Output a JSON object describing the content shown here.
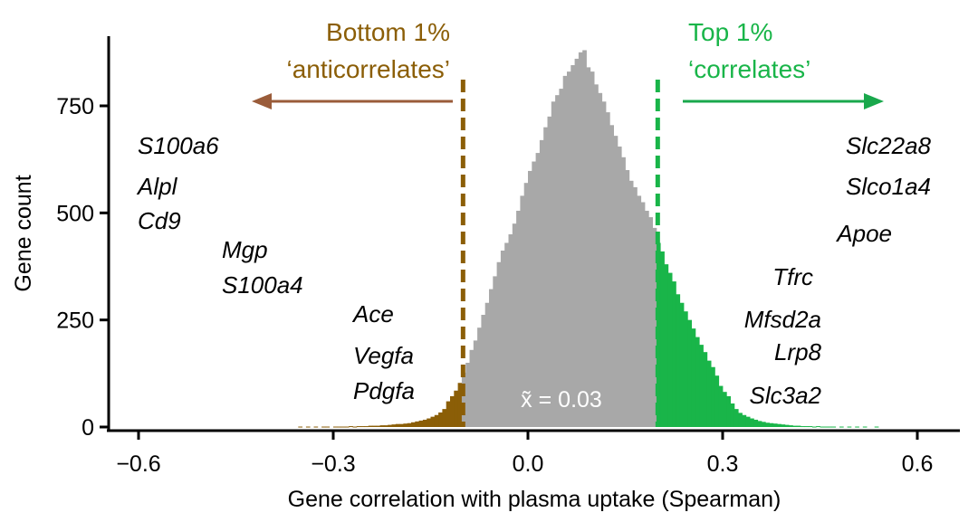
{
  "chart_data": {
    "type": "histogram",
    "xlabel": "Gene correlation with plasma uptake (Spearman)",
    "ylabel": "Gene count",
    "xlim": [
      -0.66,
      0.66
    ],
    "ylim": [
      0,
      920
    ],
    "xticks": [
      -0.6,
      -0.3,
      0.0,
      0.3,
      0.6
    ],
    "xtick_labels": [
      "−0.6",
      "−0.3",
      "0.0",
      "0.3",
      "0.6"
    ],
    "yticks": [
      0,
      250,
      500,
      750
    ],
    "ytick_labels": [
      "0",
      "250",
      "500",
      "750"
    ],
    "bin_width": 0.006,
    "bin_start": -0.354,
    "counts": [
      1,
      0,
      1,
      0,
      1,
      0,
      1,
      1,
      0,
      1,
      1,
      1,
      1,
      2,
      1,
      2,
      2,
      2,
      3,
      3,
      3,
      4,
      4,
      5,
      6,
      7,
      7,
      8,
      9,
      11,
      13,
      15,
      17,
      20,
      24,
      28,
      34,
      42,
      60,
      72,
      85,
      103,
      127,
      150,
      180,
      202,
      232,
      262,
      290,
      322,
      352,
      385,
      412,
      430,
      450,
      475,
      505,
      540,
      570,
      598,
      620,
      640,
      670,
      700,
      725,
      760,
      775,
      790,
      820,
      830,
      845,
      860,
      875,
      880,
      840,
      830,
      800,
      780,
      760,
      735,
      705,
      680,
      655,
      630,
      600,
      575,
      560,
      540,
      525,
      505,
      490,
      465,
      430,
      410,
      380,
      360,
      340,
      310,
      290,
      270,
      250,
      230,
      210,
      192,
      175,
      155,
      140,
      120,
      96,
      82,
      72,
      55,
      42,
      33,
      28,
      24,
      20,
      17,
      14,
      12,
      10,
      9,
      8,
      7,
      6,
      5,
      4,
      3,
      3,
      2,
      2,
      2,
      1,
      2,
      1,
      1,
      1,
      1,
      0,
      1,
      0,
      1,
      0,
      1,
      0,
      1,
      0,
      0,
      1
    ],
    "lower_threshold": -0.1,
    "upper_threshold": 0.2,
    "median": 0.03,
    "colors": {
      "low": "#8b5e07",
      "high": "#19b549",
      "mid": "#a8a8a8",
      "low_arrow": "#9a5c3a",
      "high_arrow": "#19a84c"
    }
  },
  "annotations": {
    "bottom_title": "Bottom 1%",
    "bottom_subtitle": "‘anticorrelates’",
    "top_title": "Top 1%",
    "top_subtitle": "‘correlates’",
    "median_label": "x̃ = 0.03"
  },
  "genes": {
    "anticorrelates": [
      "S100a6",
      "Alpl",
      "Cd9",
      "Mgp",
      "S100a4",
      "Ace",
      "Vegfa",
      "Pdgfa"
    ],
    "correlates": [
      "Slc22a8",
      "Slco1a4",
      "Apoe",
      "Tfrc",
      "Mfsd2a",
      "Lrp8",
      "Slc3a2"
    ]
  }
}
